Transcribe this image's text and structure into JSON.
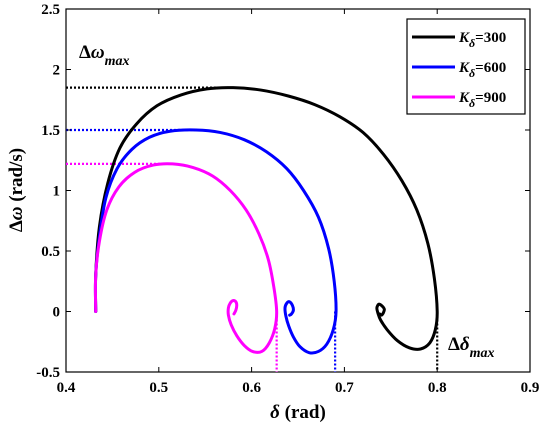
{
  "chart_data": {
    "type": "line",
    "xlabel": "δ (rad)",
    "ylabel": "Δω (rad/s)",
    "xlim": [
      0.4,
      0.9
    ],
    "ylim": [
      -0.5,
      2.5
    ],
    "x_ticks": [
      "0.4",
      "0.5",
      "0.6",
      "0.7",
      "0.8",
      "0.9"
    ],
    "y_ticks": [
      "-0.5",
      "0",
      "0.5",
      "1",
      "1.5",
      "2",
      "2.5"
    ],
    "grid": false,
    "legend_position": "top-right",
    "annotations": [
      {
        "text": "Δω",
        "subscript": "max"
      },
      {
        "text": "Δδ",
        "subscript": "max"
      }
    ],
    "series": [
      {
        "name": "Kδ=300",
        "legend_main": "K",
        "legend_sub": "δ",
        "legend_value": "=300",
        "color": "#000000",
        "peak": [
          0.58,
          1.85
        ],
        "delta_max": 0.8,
        "x": [
          0.432,
          0.432,
          0.436,
          0.445,
          0.458,
          0.476,
          0.498,
          0.524,
          0.552,
          0.58,
          0.61,
          0.64,
          0.668,
          0.695,
          0.72,
          0.742,
          0.762,
          0.778,
          0.79,
          0.797,
          0.8,
          0.798,
          0.792,
          0.782,
          0.77,
          0.757,
          0.746,
          0.739,
          0.736,
          0.735,
          0.737,
          0.74,
          0.743,
          0.742,
          0.74,
          0.738
        ],
        "y": [
          0.0,
          0.3,
          0.7,
          1.06,
          1.35,
          1.55,
          1.7,
          1.79,
          1.84,
          1.85,
          1.83,
          1.78,
          1.71,
          1.61,
          1.48,
          1.3,
          1.08,
          0.84,
          0.56,
          0.27,
          0.0,
          -0.15,
          -0.26,
          -0.31,
          -0.3,
          -0.24,
          -0.15,
          -0.07,
          -0.01,
          0.03,
          0.06,
          0.05,
          0.02,
          -0.01,
          -0.03,
          -0.02
        ]
      },
      {
        "name": "Kδ=600",
        "legend_main": "K",
        "legend_sub": "δ",
        "legend_value": "=600",
        "color": "#0000ff",
        "peak": [
          0.54,
          1.5
        ],
        "delta_max": 0.69,
        "x": [
          0.432,
          0.432,
          0.436,
          0.443,
          0.455,
          0.471,
          0.49,
          0.512,
          0.54,
          0.566,
          0.592,
          0.616,
          0.638,
          0.656,
          0.672,
          0.683,
          0.689,
          0.691,
          0.688,
          0.681,
          0.672,
          0.662,
          0.652,
          0.645,
          0.64,
          0.637,
          0.636,
          0.638,
          0.641,
          0.644,
          0.645,
          0.643,
          0.641
        ],
        "y": [
          0.0,
          0.3,
          0.62,
          0.94,
          1.18,
          1.34,
          1.44,
          1.49,
          1.5,
          1.48,
          1.42,
          1.32,
          1.18,
          1.0,
          0.78,
          0.52,
          0.25,
          0.0,
          -0.15,
          -0.27,
          -0.33,
          -0.34,
          -0.29,
          -0.21,
          -0.12,
          -0.04,
          0.03,
          0.07,
          0.08,
          0.05,
          0.01,
          -0.02,
          -0.03
        ]
      },
      {
        "name": "Kδ=900",
        "legend_main": "K",
        "legend_sub": "δ",
        "legend_value": "=900",
        "color": "#ff00ff",
        "peak": [
          0.515,
          1.22
        ],
        "delta_max": 0.627,
        "x": [
          0.432,
          0.432,
          0.436,
          0.444,
          0.457,
          0.474,
          0.494,
          0.515,
          0.537,
          0.558,
          0.577,
          0.594,
          0.608,
          0.618,
          0.624,
          0.627,
          0.625,
          0.619,
          0.611,
          0.601,
          0.592,
          0.584,
          0.578,
          0.575,
          0.575,
          0.577,
          0.58,
          0.583,
          0.584,
          0.583,
          0.581
        ],
        "y": [
          0.0,
          0.3,
          0.58,
          0.84,
          1.03,
          1.15,
          1.21,
          1.22,
          1.19,
          1.12,
          1.0,
          0.84,
          0.64,
          0.43,
          0.2,
          0.0,
          -0.14,
          -0.26,
          -0.33,
          -0.33,
          -0.28,
          -0.2,
          -0.11,
          -0.03,
          0.03,
          0.07,
          0.09,
          0.08,
          0.05,
          0.01,
          -0.02
        ]
      }
    ]
  }
}
